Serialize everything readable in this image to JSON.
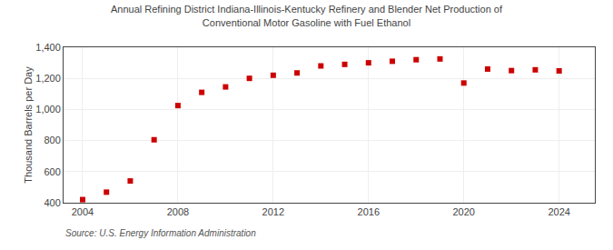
{
  "chart_data": {
    "type": "scatter",
    "title": "Annual Refining District Indiana-Illinois-Kentucky Refinery and Blender Net Production of\nConventional Motor Gasoline with Fuel Ethanol",
    "ylabel": "Thousand Barrels per Day",
    "annotations": [
      "Source: U.S. Energy Information Administration"
    ],
    "x": [
      2004,
      2005,
      2006,
      2007,
      2008,
      2009,
      2010,
      2011,
      2012,
      2013,
      2014,
      2015,
      2016,
      2017,
      2018,
      2019,
      2020,
      2021,
      2022,
      2023,
      2024
    ],
    "values": [
      420,
      468,
      540,
      805,
      1025,
      1110,
      1145,
      1200,
      1220,
      1235,
      1280,
      1290,
      1300,
      1310,
      1320,
      1325,
      1170,
      1260,
      1250,
      1255,
      1248
    ],
    "color": "#cc0000",
    "marker": "square",
    "xlim": [
      2003.2,
      2025.5
    ],
    "xticks": [
      2004,
      2008,
      2012,
      2016,
      2020,
      2024
    ],
    "ylim": [
      400,
      1400
    ],
    "yticks": [
      400,
      600,
      800,
      {
        "value": 1000,
        "label": "1,000"
      },
      {
        "value": 1200,
        "label": "1,200"
      },
      {
        "value": 1400,
        "label": "1,400"
      }
    ],
    "grid": true
  }
}
